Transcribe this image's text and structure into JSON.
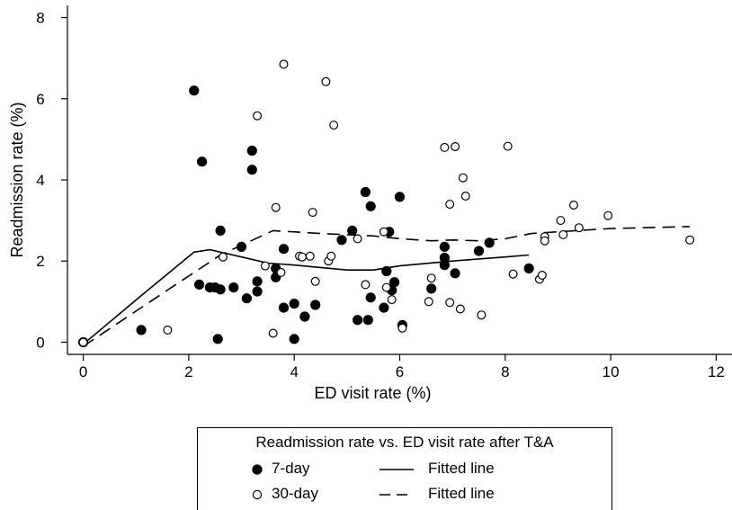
{
  "chart_data": {
    "type": "scatter",
    "xlabel": "ED visit rate (%)",
    "ylabel": "Readmission rate (%)",
    "xlim": [
      -0.3,
      12.3
    ],
    "ylim": [
      -0.3,
      8.3
    ],
    "xticks": [
      "0",
      "2",
      "4",
      "6",
      "8",
      "10",
      "12"
    ],
    "yticks": [
      "0",
      "2",
      "4",
      "6",
      "8"
    ],
    "grid": false,
    "legend_position": "bottom",
    "legend": {
      "title": "Readmission rate vs. ED visit rate after T&A",
      "entries": [
        {
          "marker": "filled-circle",
          "label": "7-day",
          "line": "solid",
          "line_label": "Fitted line"
        },
        {
          "marker": "hollow-circle",
          "label": "30-day",
          "line": "dashed",
          "line_label": "Fitted line"
        }
      ]
    },
    "series": [
      {
        "name": "7-day",
        "marker": "filled-circle",
        "points": [
          [
            0.0,
            0.0
          ],
          [
            1.1,
            0.3
          ],
          [
            2.1,
            6.2
          ],
          [
            2.25,
            4.45
          ],
          [
            2.2,
            1.42
          ],
          [
            2.4,
            1.35
          ],
          [
            2.5,
            1.35
          ],
          [
            2.55,
            0.08
          ],
          [
            2.6,
            2.75
          ],
          [
            2.6,
            1.3
          ],
          [
            2.85,
            1.35
          ],
          [
            3.0,
            2.35
          ],
          [
            3.1,
            1.08
          ],
          [
            3.2,
            4.72
          ],
          [
            3.2,
            4.25
          ],
          [
            3.3,
            1.5
          ],
          [
            3.3,
            1.25
          ],
          [
            3.65,
            1.82
          ],
          [
            3.65,
            1.6
          ],
          [
            3.8,
            2.3
          ],
          [
            3.8,
            0.85
          ],
          [
            4.0,
            0.95
          ],
          [
            4.0,
            0.08
          ],
          [
            4.2,
            0.63
          ],
          [
            4.4,
            0.92
          ],
          [
            4.9,
            2.52
          ],
          [
            5.1,
            2.75
          ],
          [
            5.2,
            0.55
          ],
          [
            5.35,
            3.7
          ],
          [
            5.4,
            0.55
          ],
          [
            5.45,
            3.35
          ],
          [
            5.45,
            1.1
          ],
          [
            5.7,
            0.85
          ],
          [
            5.75,
            1.75
          ],
          [
            5.8,
            2.72
          ],
          [
            5.85,
            1.28
          ],
          [
            5.9,
            1.48
          ],
          [
            6.0,
            3.58
          ],
          [
            6.05,
            0.42
          ],
          [
            6.6,
            1.32
          ],
          [
            6.85,
            2.35
          ],
          [
            6.85,
            2.08
          ],
          [
            6.85,
            1.9
          ],
          [
            7.05,
            1.7
          ],
          [
            7.5,
            2.25
          ],
          [
            7.7,
            2.45
          ],
          [
            8.45,
            1.82
          ]
        ]
      },
      {
        "name": "30-day",
        "marker": "hollow-circle",
        "points": [
          [
            0.0,
            0.0
          ],
          [
            1.6,
            0.3
          ],
          [
            2.65,
            2.1
          ],
          [
            3.3,
            5.58
          ],
          [
            3.45,
            1.88
          ],
          [
            3.6,
            0.22
          ],
          [
            3.65,
            3.32
          ],
          [
            3.75,
            1.72
          ],
          [
            3.8,
            6.85
          ],
          [
            4.1,
            2.12
          ],
          [
            4.15,
            2.1
          ],
          [
            4.3,
            2.12
          ],
          [
            4.35,
            3.2
          ],
          [
            4.4,
            1.5
          ],
          [
            4.6,
            6.42
          ],
          [
            4.65,
            2.0
          ],
          [
            4.7,
            2.12
          ],
          [
            4.75,
            5.35
          ],
          [
            5.2,
            2.55
          ],
          [
            5.35,
            1.42
          ],
          [
            5.7,
            2.72
          ],
          [
            5.75,
            1.35
          ],
          [
            5.85,
            1.05
          ],
          [
            6.05,
            0.35
          ],
          [
            6.55,
            1.0
          ],
          [
            6.6,
            1.58
          ],
          [
            6.85,
            4.8
          ],
          [
            6.95,
            3.4
          ],
          [
            6.95,
            0.98
          ],
          [
            7.05,
            4.82
          ],
          [
            7.15,
            0.82
          ],
          [
            7.2,
            4.05
          ],
          [
            7.25,
            3.6
          ],
          [
            7.55,
            0.67
          ],
          [
            8.05,
            4.83
          ],
          [
            8.15,
            1.68
          ],
          [
            8.65,
            1.55
          ],
          [
            8.7,
            1.65
          ],
          [
            8.75,
            2.6
          ],
          [
            8.75,
            2.5
          ],
          [
            9.05,
            3.0
          ],
          [
            9.1,
            2.65
          ],
          [
            9.3,
            3.38
          ],
          [
            9.4,
            2.82
          ],
          [
            9.95,
            3.12
          ],
          [
            11.5,
            2.52
          ]
        ]
      }
    ],
    "fitted_lines": [
      {
        "name": "7-day",
        "style": "solid",
        "points": [
          [
            0.0,
            -0.05
          ],
          [
            1.1,
            1.15
          ],
          [
            2.1,
            2.22
          ],
          [
            2.4,
            2.28
          ],
          [
            3.0,
            2.1
          ],
          [
            3.5,
            1.95
          ],
          [
            4.0,
            1.9
          ],
          [
            5.0,
            1.78
          ],
          [
            5.5,
            1.78
          ],
          [
            6.0,
            1.88
          ],
          [
            7.0,
            2.0
          ],
          [
            8.0,
            2.1
          ],
          [
            8.45,
            2.15
          ]
        ]
      },
      {
        "name": "30-day",
        "style": "dashed",
        "points": [
          [
            0.0,
            -0.1
          ],
          [
            1.5,
            1.2
          ],
          [
            2.6,
            2.15
          ],
          [
            3.6,
            2.75
          ],
          [
            4.5,
            2.68
          ],
          [
            5.5,
            2.62
          ],
          [
            6.0,
            2.55
          ],
          [
            6.6,
            2.5
          ],
          [
            7.0,
            2.52
          ],
          [
            7.5,
            2.5
          ],
          [
            8.0,
            2.55
          ],
          [
            8.5,
            2.68
          ],
          [
            9.0,
            2.72
          ],
          [
            10.0,
            2.8
          ],
          [
            11.5,
            2.85
          ]
        ]
      }
    ]
  }
}
